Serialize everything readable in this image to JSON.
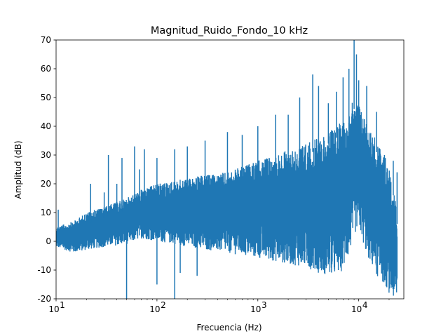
{
  "chart_data": {
    "type": "line",
    "title": "Magnitud_Ruido_Fondo_10 kHz",
    "xlabel": "Frecuencia (Hz)",
    "ylabel": "Amplitud (dB)",
    "xscale": "log",
    "xlim": [
      10,
      28000
    ],
    "ylim": [
      -20,
      70
    ],
    "x_ticks": [
      {
        "value": 10,
        "base": "10",
        "exp": "1"
      },
      {
        "value": 100,
        "base": "10",
        "exp": "2"
      },
      {
        "value": 1000,
        "base": "10",
        "exp": "3"
      },
      {
        "value": 10000,
        "base": "10",
        "exp": "4"
      }
    ],
    "y_ticks": [
      -20,
      -10,
      0,
      10,
      20,
      30,
      40,
      50,
      60,
      70
    ],
    "grid": false,
    "legend": "none",
    "series": [
      {
        "name": "Magnitud",
        "color": "#1f77b4",
        "envelope": {
          "description": "noise spectrum min/max band (estimated)",
          "freq": [
            10,
            15,
            20,
            30,
            50,
            70,
            100,
            150,
            200,
            300,
            500,
            700,
            1000,
            1500,
            2000,
            3000,
            4000,
            5000,
            6000,
            7000,
            8000,
            9000,
            10000,
            12000,
            15000,
            18000,
            20000,
            22000,
            24000
          ],
          "upper": [
            5,
            7,
            10,
            12,
            15,
            18,
            20,
            21,
            22,
            23,
            24,
            26,
            28,
            30,
            32,
            34,
            36,
            38,
            40,
            42,
            45,
            50,
            48,
            42,
            35,
            30,
            25,
            20,
            10
          ],
          "lower": [
            -2,
            -4,
            -3,
            -2,
            -1,
            1,
            0,
            -1,
            -2,
            -3,
            -4,
            -5,
            -6,
            -7,
            -8,
            -9,
            -11,
            -12,
            -12,
            -10,
            -5,
            2,
            5,
            -5,
            -12,
            -15,
            -18,
            -20,
            -20
          ]
        },
        "spikes": [
          {
            "x": 10.5,
            "y": 11
          },
          {
            "x": 22,
            "y": 20
          },
          {
            "x": 30,
            "y": 17
          },
          {
            "x": 33,
            "y": 30
          },
          {
            "x": 40,
            "y": 20
          },
          {
            "x": 45,
            "y": 29
          },
          {
            "x": 60,
            "y": 33
          },
          {
            "x": 67,
            "y": 25
          },
          {
            "x": 75,
            "y": 32
          },
          {
            "x": 100,
            "y": 29
          },
          {
            "x": 150,
            "y": 32
          },
          {
            "x": 200,
            "y": 33
          },
          {
            "x": 300,
            "y": 35
          },
          {
            "x": 500,
            "y": 38
          },
          {
            "x": 700,
            "y": 37
          },
          {
            "x": 1000,
            "y": 40
          },
          {
            "x": 1500,
            "y": 44
          },
          {
            "x": 2000,
            "y": 44
          },
          {
            "x": 2600,
            "y": 50
          },
          {
            "x": 3500,
            "y": 58
          },
          {
            "x": 4000,
            "y": 54
          },
          {
            "x": 5000,
            "y": 48
          },
          {
            "x": 6000,
            "y": 52
          },
          {
            "x": 7000,
            "y": 57
          },
          {
            "x": 8000,
            "y": 60
          },
          {
            "x": 9000,
            "y": 70
          },
          {
            "x": 9500,
            "y": 65
          },
          {
            "x": 10000,
            "y": 56
          },
          {
            "x": 12000,
            "y": 54
          },
          {
            "x": 15000,
            "y": 45
          },
          {
            "x": 18000,
            "y": 30
          },
          {
            "x": 22000,
            "y": 28
          },
          {
            "x": 24000,
            "y": 24
          }
        ],
        "dips": [
          {
            "x": 50,
            "y": -20
          },
          {
            "x": 100,
            "y": -15
          },
          {
            "x": 150,
            "y": -20
          },
          {
            "x": 170,
            "y": -11
          },
          {
            "x": 250,
            "y": -12
          }
        ]
      }
    ]
  }
}
